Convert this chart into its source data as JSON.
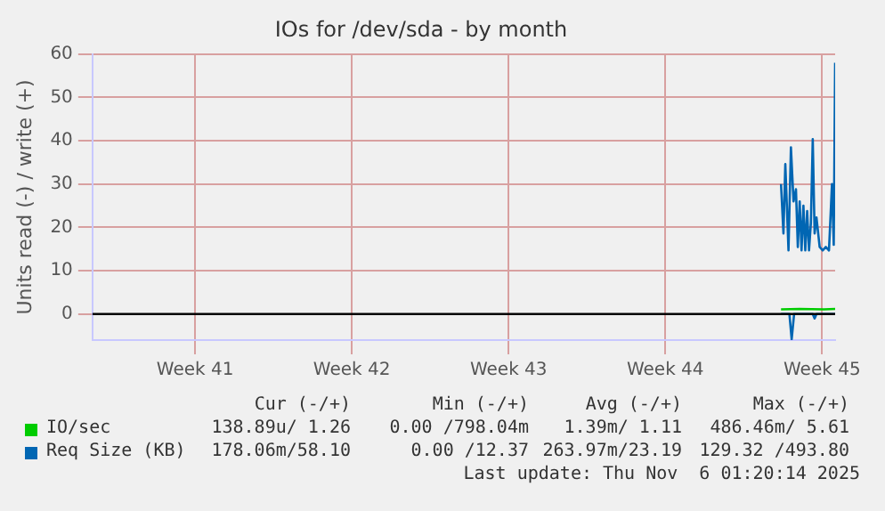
{
  "chart_data": {
    "type": "line",
    "title": "IOs for /dev/sda - by month",
    "ylabel": "Units read (-) / write (+)",
    "xlim": [
      "2025-10-03T22:00",
      "2025-11-06T02:00"
    ],
    "xticks": [
      {
        "value": "2025-10-08T12:00",
        "label": "Week 41"
      },
      {
        "value": "2025-10-15T12:00",
        "label": "Week 42"
      },
      {
        "value": "2025-10-22T12:00",
        "label": "Week 43"
      },
      {
        "value": "2025-10-29T12:00",
        "label": "Week 44"
      },
      {
        "value": "2025-11-05T12:00",
        "label": "Week 45"
      }
    ],
    "ylim": [
      -6,
      60
    ],
    "yticks": [
      0,
      10,
      20,
      30,
      40,
      50,
      60
    ],
    "grid": true,
    "legend": "bottom left",
    "marker": "none",
    "ref_lines": [
      {
        "axis": "y",
        "value": 0,
        "color": "#000000"
      }
    ],
    "series": [
      {
        "name": "IO/sec",
        "color": "#00cc00",
        "x": [
          "2025-11-03T16:00",
          "2025-11-04T12:00",
          "2025-11-05T14:00",
          "2025-11-06T02:00"
        ],
        "values": [
          1.1,
          1.2,
          1.1,
          1.2
        ]
      },
      {
        "name": "Req Size (KB)",
        "color": "#0066b3",
        "x": [
          "2025-11-03T16:00",
          "2025-11-03T18:36",
          "2025-11-03T20:36",
          "2025-11-04T00:00",
          "2025-11-04T02:36",
          "2025-11-04T05:24",
          "2025-11-04T08:00",
          "2025-11-04T10:00",
          "2025-11-04T12:00",
          "2025-11-04T14:00",
          "2025-11-04T16:00",
          "2025-11-04T18:00",
          "2025-11-04T20:00",
          "2025-11-04T22:00",
          "2025-11-05T00:00",
          "2025-11-05T02:00",
          "2025-11-05T04:00",
          "2025-11-05T06:00",
          "2025-11-05T09:24",
          "2025-11-05T12:36",
          "2025-11-05T16:00",
          "2025-11-05T19:24",
          "2025-11-05T22:36",
          "2025-11-06T00:30",
          "2025-11-06T02:00"
        ],
        "values": [
          30,
          18.6,
          34.6,
          14.7,
          38.5,
          26,
          28.8,
          15.5,
          26,
          14.7,
          25,
          14.7,
          23.8,
          14.7,
          21,
          40.4,
          18.6,
          22.3,
          15.5,
          14.7,
          15.5,
          14.7,
          30,
          16,
          58
        ]
      },
      {
        "color": "#0066b3",
        "x": [
          "2025-11-03T16:00",
          "2025-11-04T01:00",
          "2025-11-04T03:24",
          "2025-11-04T06:00",
          "2025-11-05T02:00",
          "2025-11-05T04:00",
          "2025-11-05T06:00",
          "2025-11-06T02:00"
        ],
        "values": [
          0,
          0,
          -5.8,
          0,
          0,
          -1,
          0,
          0
        ]
      }
    ],
    "annotations": [
      "Cur (-/+)",
      "Min (-/+)",
      "Avg (-/+)",
      "Max (-/+)",
      "138.89u/ 1.26",
      "0.00 /798.04m",
      "1.39m/ 1.11",
      "486.46m/ 5.61",
      "178.06m/58.10",
      "0.00 /12.37",
      "263.97m/23.19",
      "129.32 /493.80",
      "Last update: Thu Nov  6 01:20:14 2025"
    ]
  }
}
